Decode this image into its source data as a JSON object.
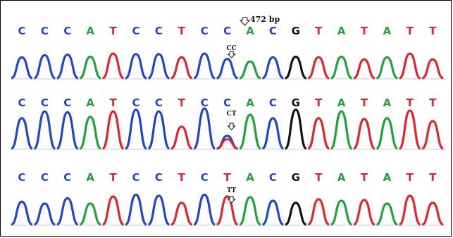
{
  "colors": {
    "A": "#1fa33a",
    "C": "#2246c8",
    "G": "#111111",
    "T": "#e3232e"
  },
  "position_label": "472 bp",
  "tracks": [
    {
      "genotype": "CC",
      "bases": [
        "C",
        "C",
        "C",
        "A",
        "T",
        "C",
        "C",
        "T",
        "C",
        "C",
        "A",
        "C",
        "G",
        "T",
        "A",
        "T",
        "A",
        "T",
        "T"
      ],
      "heights": [
        0.78,
        0.86,
        0.88,
        0.8,
        0.92,
        0.9,
        0.9,
        0.78,
        0.92,
        0.72,
        0.62,
        0.78,
        0.8,
        0.78,
        0.8,
        0.7,
        0.78,
        0.92,
        0.7
      ]
    },
    {
      "genotype": "CT",
      "bases": [
        "C",
        "C",
        "C",
        "A",
        "T",
        "C",
        "C",
        "T",
        "C",
        "C",
        "A",
        "C",
        "G",
        "T",
        "A",
        "T",
        "A",
        "T",
        "T"
      ],
      "heights": [
        0.72,
        0.88,
        0.86,
        0.75,
        0.88,
        0.92,
        0.88,
        0.52,
        0.95,
        0.3,
        0.8,
        0.72,
        0.92,
        0.72,
        0.88,
        0.7,
        0.72,
        0.9,
        0.65
      ]
    },
    {
      "genotype": "TT",
      "bases": [
        "C",
        "C",
        "C",
        "A",
        "T",
        "C",
        "C",
        "T",
        "C",
        "T",
        "A",
        "C",
        "G",
        "T",
        "A",
        "T",
        "A",
        "T",
        "T"
      ],
      "heights": [
        0.65,
        0.6,
        0.75,
        0.6,
        0.8,
        0.85,
        0.82,
        0.62,
        0.85,
        0.8,
        0.78,
        0.68,
        0.62,
        0.72,
        0.68,
        0.7,
        0.6,
        0.82,
        0.62
      ]
    }
  ]
}
